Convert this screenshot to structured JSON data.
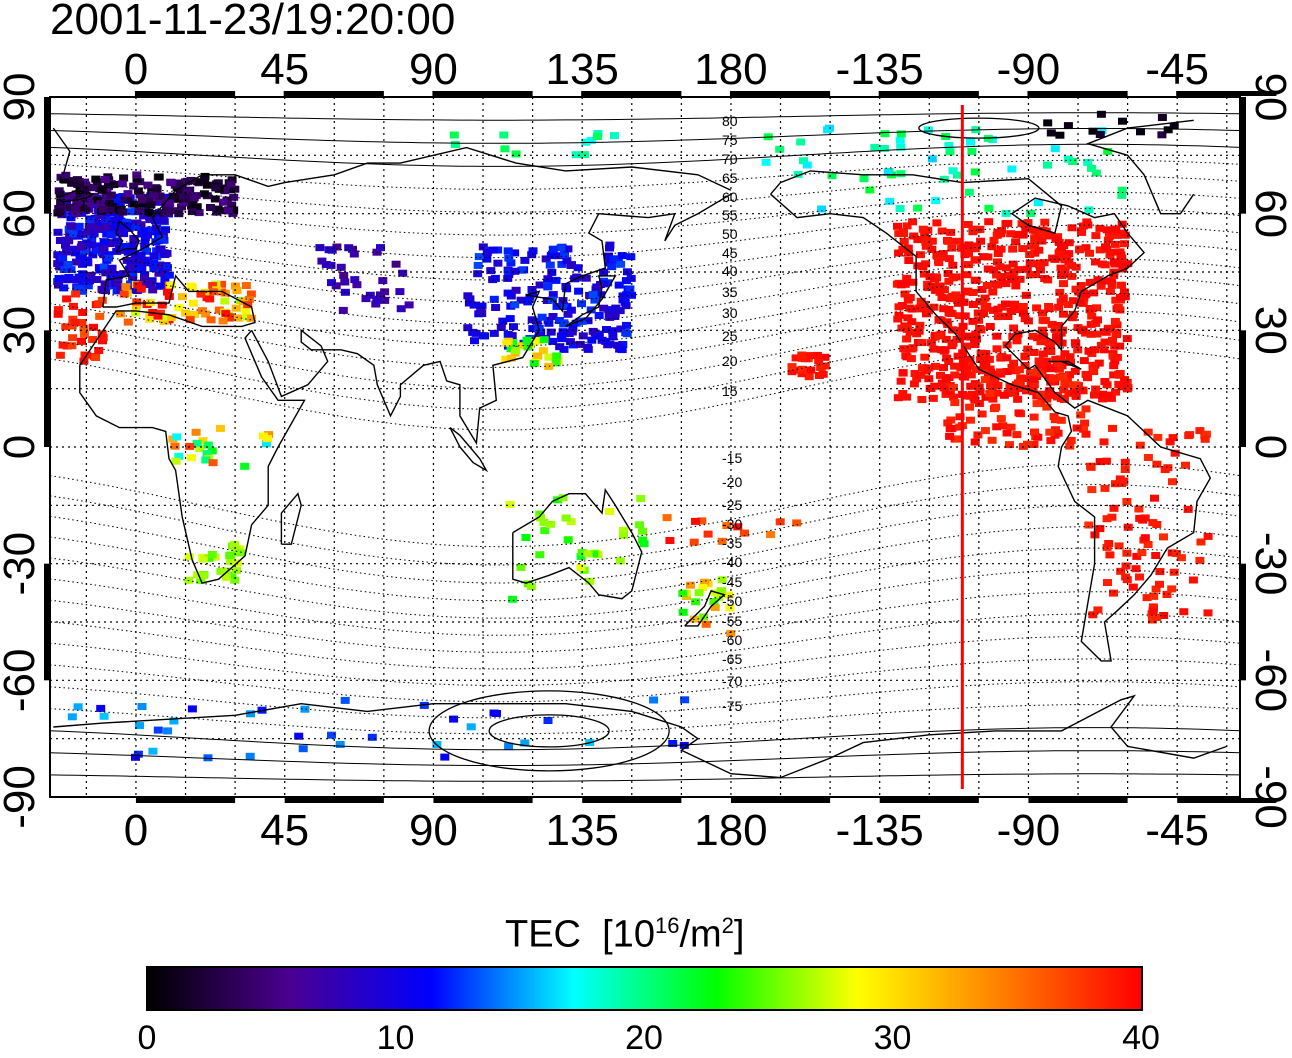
{
  "title": "2001-11-23/19:20:00",
  "map": {
    "projection": "plate-carree",
    "lon_range": [
      -26,
      334
    ],
    "lat_range": [
      -90,
      90
    ],
    "top_lon_labels": [
      "0",
      "45",
      "90",
      "135",
      "180",
      "-135",
      "-90",
      "-45"
    ],
    "bottom_lon_labels": [
      "0",
      "45",
      "90",
      "135",
      "180",
      "-135",
      "-90",
      "-45"
    ],
    "left_lat_labels": [
      "90",
      "60",
      "30",
      "0",
      "-30",
      "-60",
      "-90"
    ],
    "right_lat_labels": [
      "90",
      "60",
      "30",
      "0",
      "-30",
      "-60",
      "-90"
    ],
    "grid": "dotted, 15 degree spacing",
    "meridian_marker": {
      "lon": -110,
      "color": "#ff0000"
    },
    "coastlines": "black outline"
  },
  "contour_labels": [
    "80",
    "75",
    "70",
    "65",
    "60",
    "55",
    "50",
    "45",
    "40",
    "35",
    "30",
    "25",
    "20",
    "15",
    "-15",
    "-20",
    "-25",
    "-30",
    "-35",
    "-40",
    "-45",
    "-50",
    "-55",
    "-60",
    "-65",
    "-70",
    "-75"
  ],
  "colorbar": {
    "title": "TEC",
    "unit_prefix": "[10",
    "unit_exp1": "16",
    "unit_mid": "/m",
    "unit_exp2": "2",
    "unit_suffix": "]",
    "ticks": [
      "0",
      "10",
      "20",
      "30",
      "40"
    ],
    "range": [
      0,
      40
    ],
    "colormap": [
      "#000000",
      "#4b0091",
      "#0000ff",
      "#00ffff",
      "#00ff00",
      "#ffff00",
      "#ff8000",
      "#ff0000"
    ]
  }
}
